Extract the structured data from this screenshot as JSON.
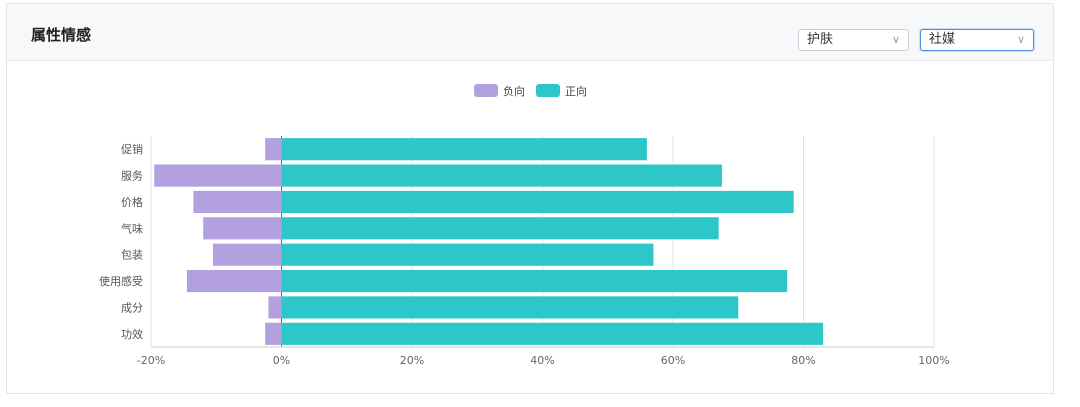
{
  "panel": {
    "title": "属性情感"
  },
  "filters": {
    "category": {
      "selected": "护肤",
      "icon": "chevron-down-icon"
    },
    "channel": {
      "selected": "社媒",
      "icon": "chevron-down-icon"
    }
  },
  "chart_data": {
    "type": "bar",
    "orientation": "horizontal",
    "stacked": true,
    "categories": [
      "促销",
      "服务",
      "价格",
      "气味",
      "包装",
      "使用感受",
      "成分",
      "功效"
    ],
    "series": [
      {
        "name": "负向",
        "color": "#b3a0df",
        "values": [
          -2.5,
          -19.5,
          -13.5,
          -12,
          -10.5,
          -14.5,
          -2,
          -2.5
        ]
      },
      {
        "name": "正向",
        "color": "#2ec7c9",
        "values": [
          56,
          67.5,
          78.5,
          67,
          57,
          77.5,
          70,
          83
        ]
      }
    ],
    "xticks": [
      "-20%",
      "0%",
      "20%",
      "40%",
      "60%",
      "80%",
      "100%"
    ],
    "xlim": [
      -20,
      100
    ],
    "grid": true,
    "legend": "top-center",
    "xlabel": "",
    "ylabel": ""
  }
}
